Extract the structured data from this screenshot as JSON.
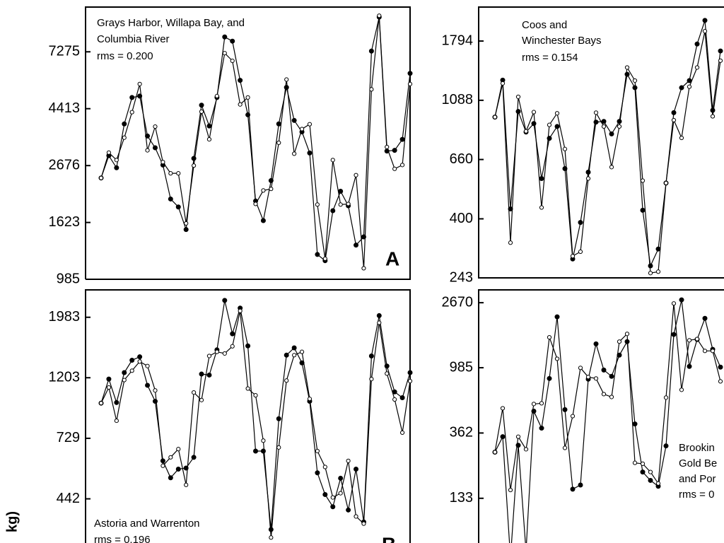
{
  "y_axis_label": "kg)",
  "chart_data": [
    {
      "type": "line",
      "log_scale": true,
      "ylim": [
        985,
        10780
      ],
      "yticks": [
        985,
        1623,
        2676,
        4413,
        7275
      ],
      "annotations": [
        "Grays Harbor, Willapa Bay, and",
        "Columbia River",
        "rms = 0.200"
      ],
      "label": "A",
      "series": [
        {
          "color": "#000000",
          "marker": "filled",
          "values": [
            2400,
            2920,
            2625,
            3860,
            4870,
            4930,
            3470,
            3130,
            2690,
            1995,
            1860,
            1525,
            2850,
            4550,
            3790,
            4870,
            8290,
            7990,
            5660,
            4180,
            1960,
            1650,
            2345,
            3860,
            5320,
            3980,
            3600,
            2990,
            1225,
            1160,
            1800,
            2135,
            1880,
            1330,
            1430,
            7320,
            9870,
            3040,
            3060,
            3370,
            6020
          ]
        },
        {
          "color": "#000000",
          "marker": "open",
          "values": [
            2400,
            3000,
            2810,
            3420,
            4280,
            5480,
            3060,
            3770,
            2760,
            2500,
            2500,
            1610,
            2676,
            4300,
            3370,
            4930,
            7190,
            6720,
            4580,
            4870,
            1910,
            2150,
            2180,
            3270,
            5700,
            2970,
            3690,
            3850,
            1900,
            1180,
            2810,
            1900,
            1910,
            2460,
            1085,
            5230,
            9990,
            3150,
            2600,
            2690,
            5480
          ]
        }
      ]
    },
    {
      "type": "line",
      "log_scale": true,
      "ylim": [
        243,
        2390
      ],
      "yticks": [
        243,
        400,
        660,
        1088,
        1794
      ],
      "annotations": [
        "Coos and",
        "Winchester Bays",
        "rms = 0.154"
      ],
      "series": [
        {
          "color": "#000000",
          "marker": "filled",
          "values": [
            944,
            1290,
            435,
            990,
            832,
            894,
            562,
            789,
            872,
            611,
            285,
            388,
            593,
            905,
            910,
            819,
            910,
            1355,
            1210,
            430,
            269,
            310,
            541,
            980,
            1210,
            1285,
            1750,
            2135,
            1000,
            1650
          ]
        },
        {
          "color": "#000000",
          "marker": "open",
          "values": [
            944,
            1255,
            327,
            1120,
            838,
            985,
            440,
            884,
            975,
            721,
            292,
            303,
            562,
            980,
            872,
            619,
            872,
            1435,
            1285,
            552,
            253,
            256,
            541,
            920,
            792,
            1220,
            1435,
            1950,
            950,
            1520
          ]
        }
      ]
    },
    {
      "type": "line",
      "log_scale": true,
      "ylim": [
        262,
        2487
      ],
      "yticks": [
        442,
        729,
        1203,
        1983
      ],
      "annotations": [
        "Astoria and Warrenton",
        "rms = 0.196"
      ],
      "label": "B",
      "series": [
        {
          "color": "#000000",
          "marker": "filled",
          "values": [
            975,
            1190,
            980,
            1255,
            1390,
            1430,
            1130,
            990,
            605,
            526,
            565,
            570,
            623,
            1240,
            1230,
            1515,
            2280,
            1730,
            2140,
            1565,
            656,
            656,
            343,
            857,
            1450,
            1540,
            1360,
            990,
            548,
            458,
            414,
            524,
            403,
            565,
            365,
            1440,
            2010,
            1325,
            1070,
            1020,
            1255
          ]
        },
        {
          "color": "#000000",
          "marker": "open",
          "values": [
            975,
            1110,
            843,
            1180,
            1275,
            1375,
            1325,
            1083,
            581,
            623,
            667,
            496,
            1065,
            1000,
            1440,
            1490,
            1470,
            1560,
            2090,
            1100,
            1040,
            715,
            321,
            676,
            1175,
            1450,
            1490,
            1010,
            656,
            575,
            447,
            463,
            605,
            382,
            360,
            1190,
            1895,
            1245,
            1005,
            764,
            1170
          ]
        }
      ]
    },
    {
      "type": "line",
      "log_scale": true,
      "ylim": [
        50,
        3250
      ],
      "yticks": [
        133,
        362,
        985,
        2670
      ],
      "annotations": [
        "Brookin",
        "Gold Be",
        "and Por",
        "rms = 0"
      ],
      "series": [
        {
          "color": "#000000",
          "marker": "filled",
          "values": [
            270,
            342,
            53,
            300,
            59,
            506,
            390,
            835,
            2150,
            518,
            153,
            163,
            826,
            1420,
            951,
            863,
            1195,
            1470,
            416,
            199,
            175,
            160,
            297,
            1640,
            2790,
            1005,
            1520,
            2100,
            1305,
            994
          ]
        },
        {
          "color": "#000000",
          "marker": "open",
          "values": [
            270,
            529,
            151,
            342,
            282,
            565,
            571,
            1570,
            1130,
            288,
            469,
            983,
            854,
            835,
            657,
            629,
            1470,
            1655,
            229,
            226,
            199,
            167,
            623,
            2640,
            702,
            1500,
            1530,
            1275,
            1275,
            799
          ]
        }
      ]
    }
  ]
}
